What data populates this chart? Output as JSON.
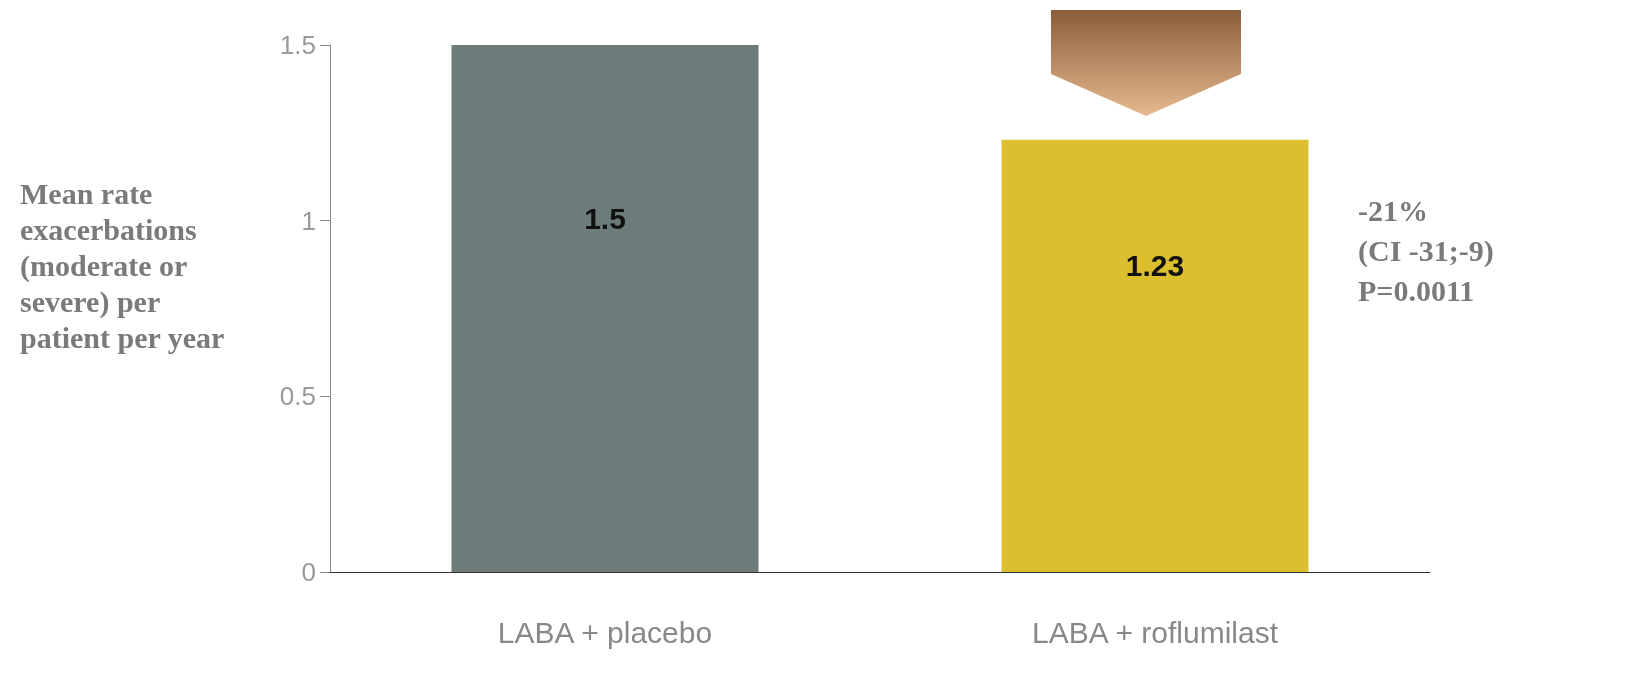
{
  "chart_data": {
    "type": "bar",
    "ylabel": "Mean rate exacerbations (moderate or severe) per patient per year",
    "categories": [
      "LABA + placebo",
      "LABA + roflumilast"
    ],
    "values": [
      1.5,
      1.23
    ],
    "colors": [
      "#6e7b7b",
      "#dcbf2e"
    ],
    "ylim": [
      0,
      1.5
    ],
    "yticks": [
      0,
      0.5,
      1,
      1.5
    ],
    "data_labels": true,
    "annotations": [
      "-21%\n(CI -31;-9)\nP=0.0011"
    ]
  }
}
